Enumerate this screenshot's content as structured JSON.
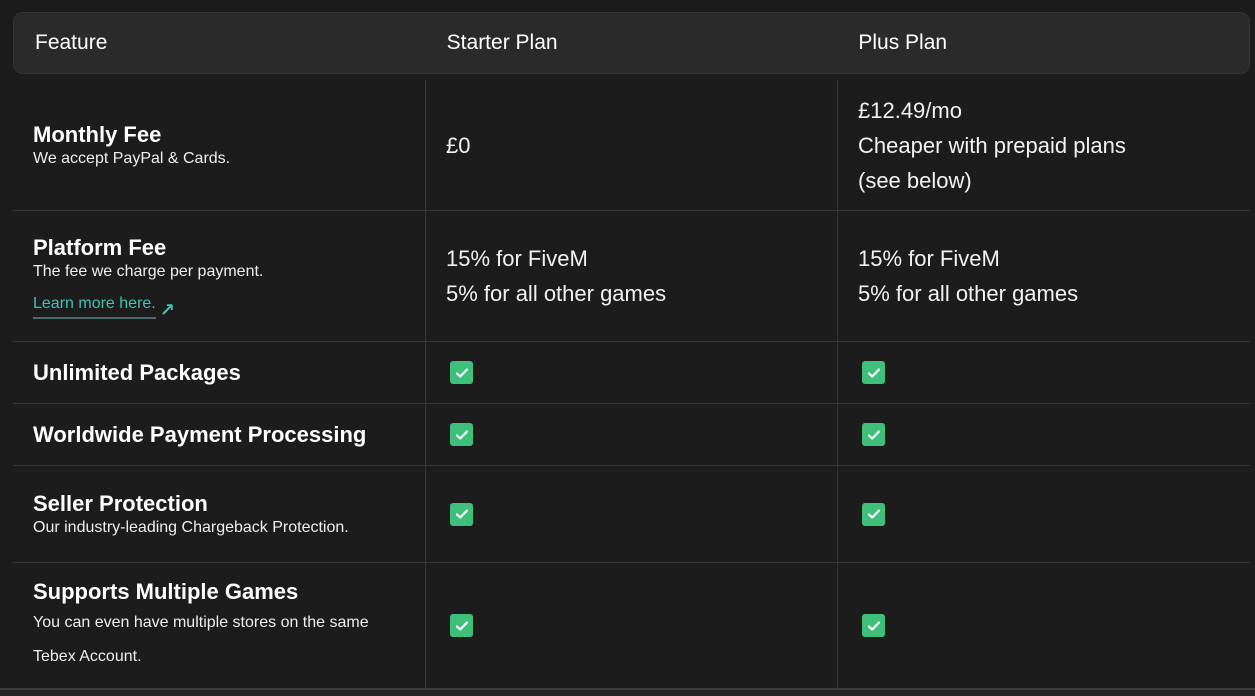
{
  "header": {
    "columns": [
      "Feature",
      "Starter Plan",
      "Plus Plan"
    ]
  },
  "rows": [
    {
      "title": "Monthly Fee",
      "desc": "We accept PayPal & Cards.",
      "starter": [
        "£0"
      ],
      "plus": [
        "£12.49/mo",
        "Cheaper with prepaid plans",
        "(see below)"
      ]
    },
    {
      "title": "Platform Fee",
      "desc": "The fee we charge per payment.",
      "link": "Learn more here.",
      "starter": [
        "15% for FiveM",
        "5% for all other games"
      ],
      "plus": [
        "15% for FiveM",
        "5% for all other games"
      ]
    },
    {
      "title": "Unlimited Packages",
      "starter": true,
      "plus": true
    },
    {
      "title": "Worldwide Payment Processing",
      "starter": true,
      "plus": true
    },
    {
      "title": "Seller Protection",
      "desc": "Our industry-leading Chargeback Protection.",
      "starter": true,
      "plus": true
    },
    {
      "title": "Supports Multiple Games",
      "desc": "You can even have multiple stores on the same Tebex Account.",
      "starter": true,
      "plus": true
    }
  ],
  "colors": {
    "check": "#3ec07a",
    "link": "#3fc3b5",
    "background": "#1c1c1c"
  },
  "icons": {
    "check": "check-box-icon",
    "link": "arrow-up-right-icon"
  }
}
